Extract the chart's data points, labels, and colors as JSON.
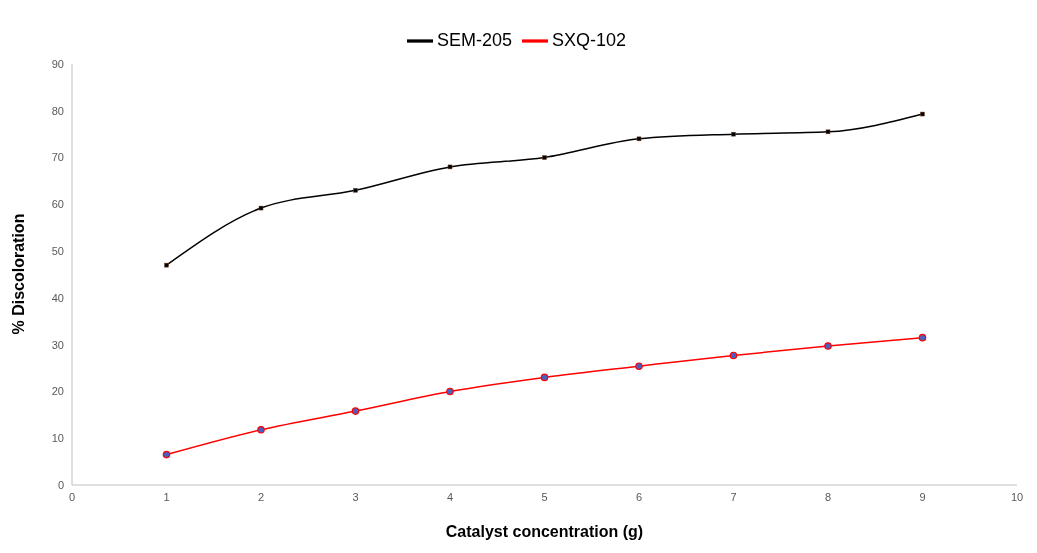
{
  "chart_data": {
    "type": "line",
    "xlabel": "Catalyst concentration (g)",
    "ylabel": "% Discoloration",
    "x": [
      1,
      2,
      3,
      4,
      5,
      6,
      7,
      8,
      9
    ],
    "series": [
      {
        "name": "SEM-205",
        "color": "#000000",
        "marker": "square",
        "values": [
          47,
          59.2,
          63,
          68,
          70,
          74,
          75,
          75.5,
          79.3
        ]
      },
      {
        "name": "SXQ-102",
        "color": "#ff0000",
        "marker": "circle",
        "values": [
          6.5,
          11.8,
          15.8,
          20,
          23,
          25.4,
          27.7,
          29.7,
          31.5
        ]
      }
    ],
    "xlim": [
      0,
      10
    ],
    "xticks": [
      0,
      1,
      2,
      3,
      4,
      5,
      6,
      7,
      8,
      9,
      10
    ],
    "ylim": [
      0,
      90
    ],
    "yticks": [
      0,
      10,
      20,
      30,
      40,
      50,
      60,
      70,
      80,
      90
    ],
    "grid": false,
    "legend": "top"
  }
}
